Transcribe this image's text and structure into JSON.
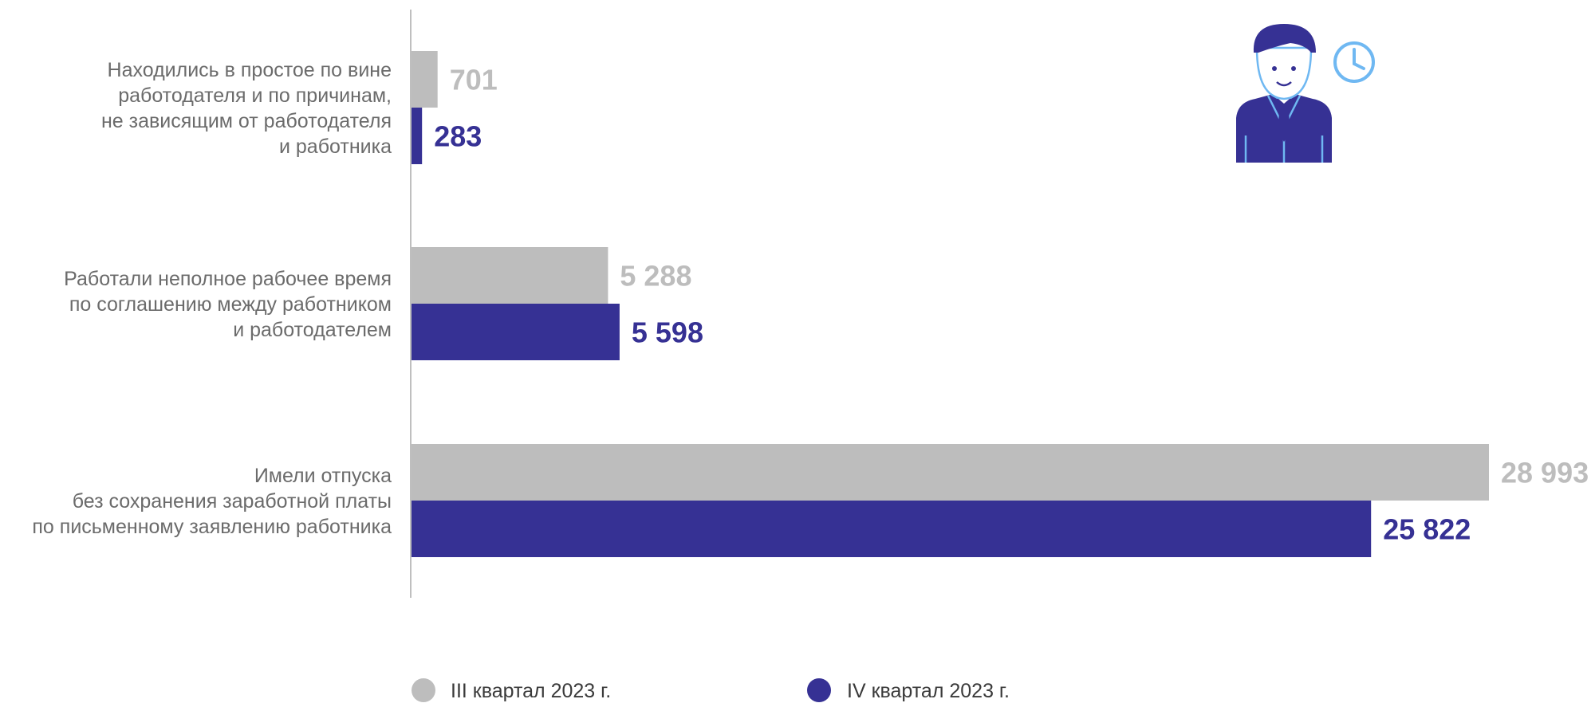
{
  "chart_data": {
    "type": "bar",
    "orientation": "horizontal",
    "categories": [
      "Находились в простое по вине работодателя и по причинам, не зависящим от работодателя и работника",
      "Работали неполное рабочее время по соглашению между работником и работодателем",
      "Имели отпуска без сохранения заработной платы по письменному заявлению работника"
    ],
    "category_lines": [
      [
        "Находились в простое по вине",
        "работодателя и по причинам,",
        "не зависящим от работодателя",
        "и работника"
      ],
      [
        "Работали неполное рабочее время",
        "по соглашению между работником",
        "и работодателем"
      ],
      [
        "Имели отпуска",
        "без сохранения заработной платы",
        "по письменному заявлению работника"
      ]
    ],
    "series": [
      {
        "name": "III квартал 2023 г.",
        "values": [
          701,
          5288,
          28993
        ],
        "value_labels": [
          "701",
          "5 288",
          "28 993"
        ],
        "color": "#bdbdbd"
      },
      {
        "name": "IV квартал 2023 г.",
        "values": [
          283,
          5598,
          25822
        ],
        "value_labels": [
          "283",
          "5 598",
          "25 822"
        ],
        "color": "#363194"
      }
    ],
    "xlim": [
      0,
      28993
    ],
    "grid": false,
    "legend_position": "bottom"
  },
  "colors": {
    "axis": "#bfbfbf",
    "category_text": "#6b6b6b",
    "legend_text": "#3a3a3a",
    "icon_dark": "#363194",
    "icon_light": "#6fb8f2"
  },
  "icons": [
    "businessman-icon",
    "clock-icon"
  ]
}
